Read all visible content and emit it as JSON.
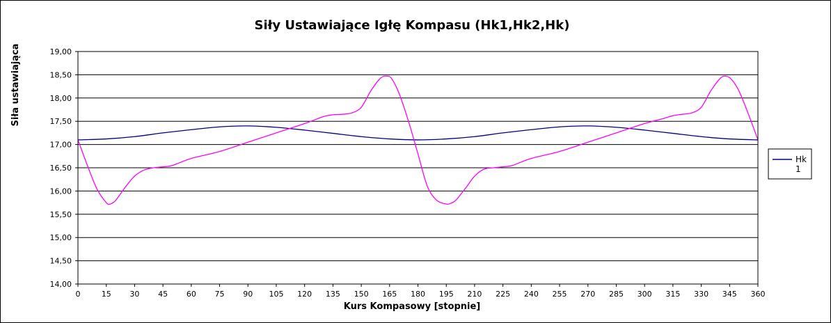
{
  "chart_data": {
    "type": "line",
    "title": "Siły Ustawiające Igłę Kompasu (Hk1,Hk2,Hk)",
    "xlabel": "Kurs Kompasowy  [stopnie]",
    "ylabel": "Siła ustawiająca",
    "xlim": [
      0,
      360
    ],
    "ylim": [
      14.0,
      19.0
    ],
    "x_ticks": [
      "0",
      "15",
      "30",
      "45",
      "60",
      "75",
      "90",
      "105",
      "120",
      "135",
      "150",
      "165",
      "180",
      "195",
      "210",
      "225",
      "240",
      "255",
      "270",
      "285",
      "300",
      "315",
      "330",
      "345",
      "360"
    ],
    "y_ticks": [
      "14,00",
      "14,50",
      "15,00",
      "15,50",
      "16,00",
      "16,50",
      "17,00",
      "17,50",
      "18,00",
      "18,50",
      "19,00"
    ],
    "grid": "horizontal",
    "legend_position": "right",
    "series": [
      {
        "name": "Hk 1",
        "color": "#000080",
        "x": [
          0,
          15,
          30,
          45,
          60,
          75,
          90,
          105,
          120,
          135,
          150,
          165,
          180,
          195,
          210,
          225,
          240,
          255,
          270,
          285,
          300,
          315,
          330,
          345,
          360
        ],
        "values": [
          17.1,
          17.12,
          17.17,
          17.25,
          17.32,
          17.38,
          17.4,
          17.37,
          17.31,
          17.24,
          17.17,
          17.12,
          17.1,
          17.12,
          17.17,
          17.25,
          17.32,
          17.38,
          17.4,
          17.37,
          17.31,
          17.24,
          17.17,
          17.12,
          17.1
        ]
      },
      {
        "name": "",
        "color": "#ff00ff",
        "x": [
          0,
          5,
          10,
          15,
          17,
          20,
          25,
          30,
          35,
          40,
          45,
          50,
          60,
          75,
          90,
          105,
          120,
          130,
          135,
          140,
          145,
          150,
          155,
          160,
          163,
          166,
          170,
          175,
          180,
          185,
          190,
          195,
          197,
          200,
          205,
          210,
          215,
          220,
          225,
          230,
          240,
          255,
          270,
          285,
          300,
          310,
          315,
          320,
          325,
          330,
          335,
          340,
          343,
          346,
          350,
          355,
          360
        ],
        "values": [
          17.1,
          16.55,
          16.05,
          15.75,
          15.72,
          15.8,
          16.08,
          16.32,
          16.45,
          16.5,
          16.52,
          16.55,
          16.7,
          16.85,
          17.05,
          17.25,
          17.45,
          17.6,
          17.64,
          17.65,
          17.68,
          17.8,
          18.15,
          18.42,
          18.47,
          18.42,
          18.1,
          17.5,
          16.8,
          16.1,
          15.8,
          15.72,
          15.73,
          15.8,
          16.05,
          16.32,
          16.47,
          16.5,
          16.52,
          16.55,
          16.7,
          16.85,
          17.05,
          17.25,
          17.45,
          17.56,
          17.62,
          17.65,
          17.68,
          17.8,
          18.15,
          18.42,
          18.47,
          18.4,
          18.15,
          17.65,
          17.1
        ]
      }
    ]
  }
}
